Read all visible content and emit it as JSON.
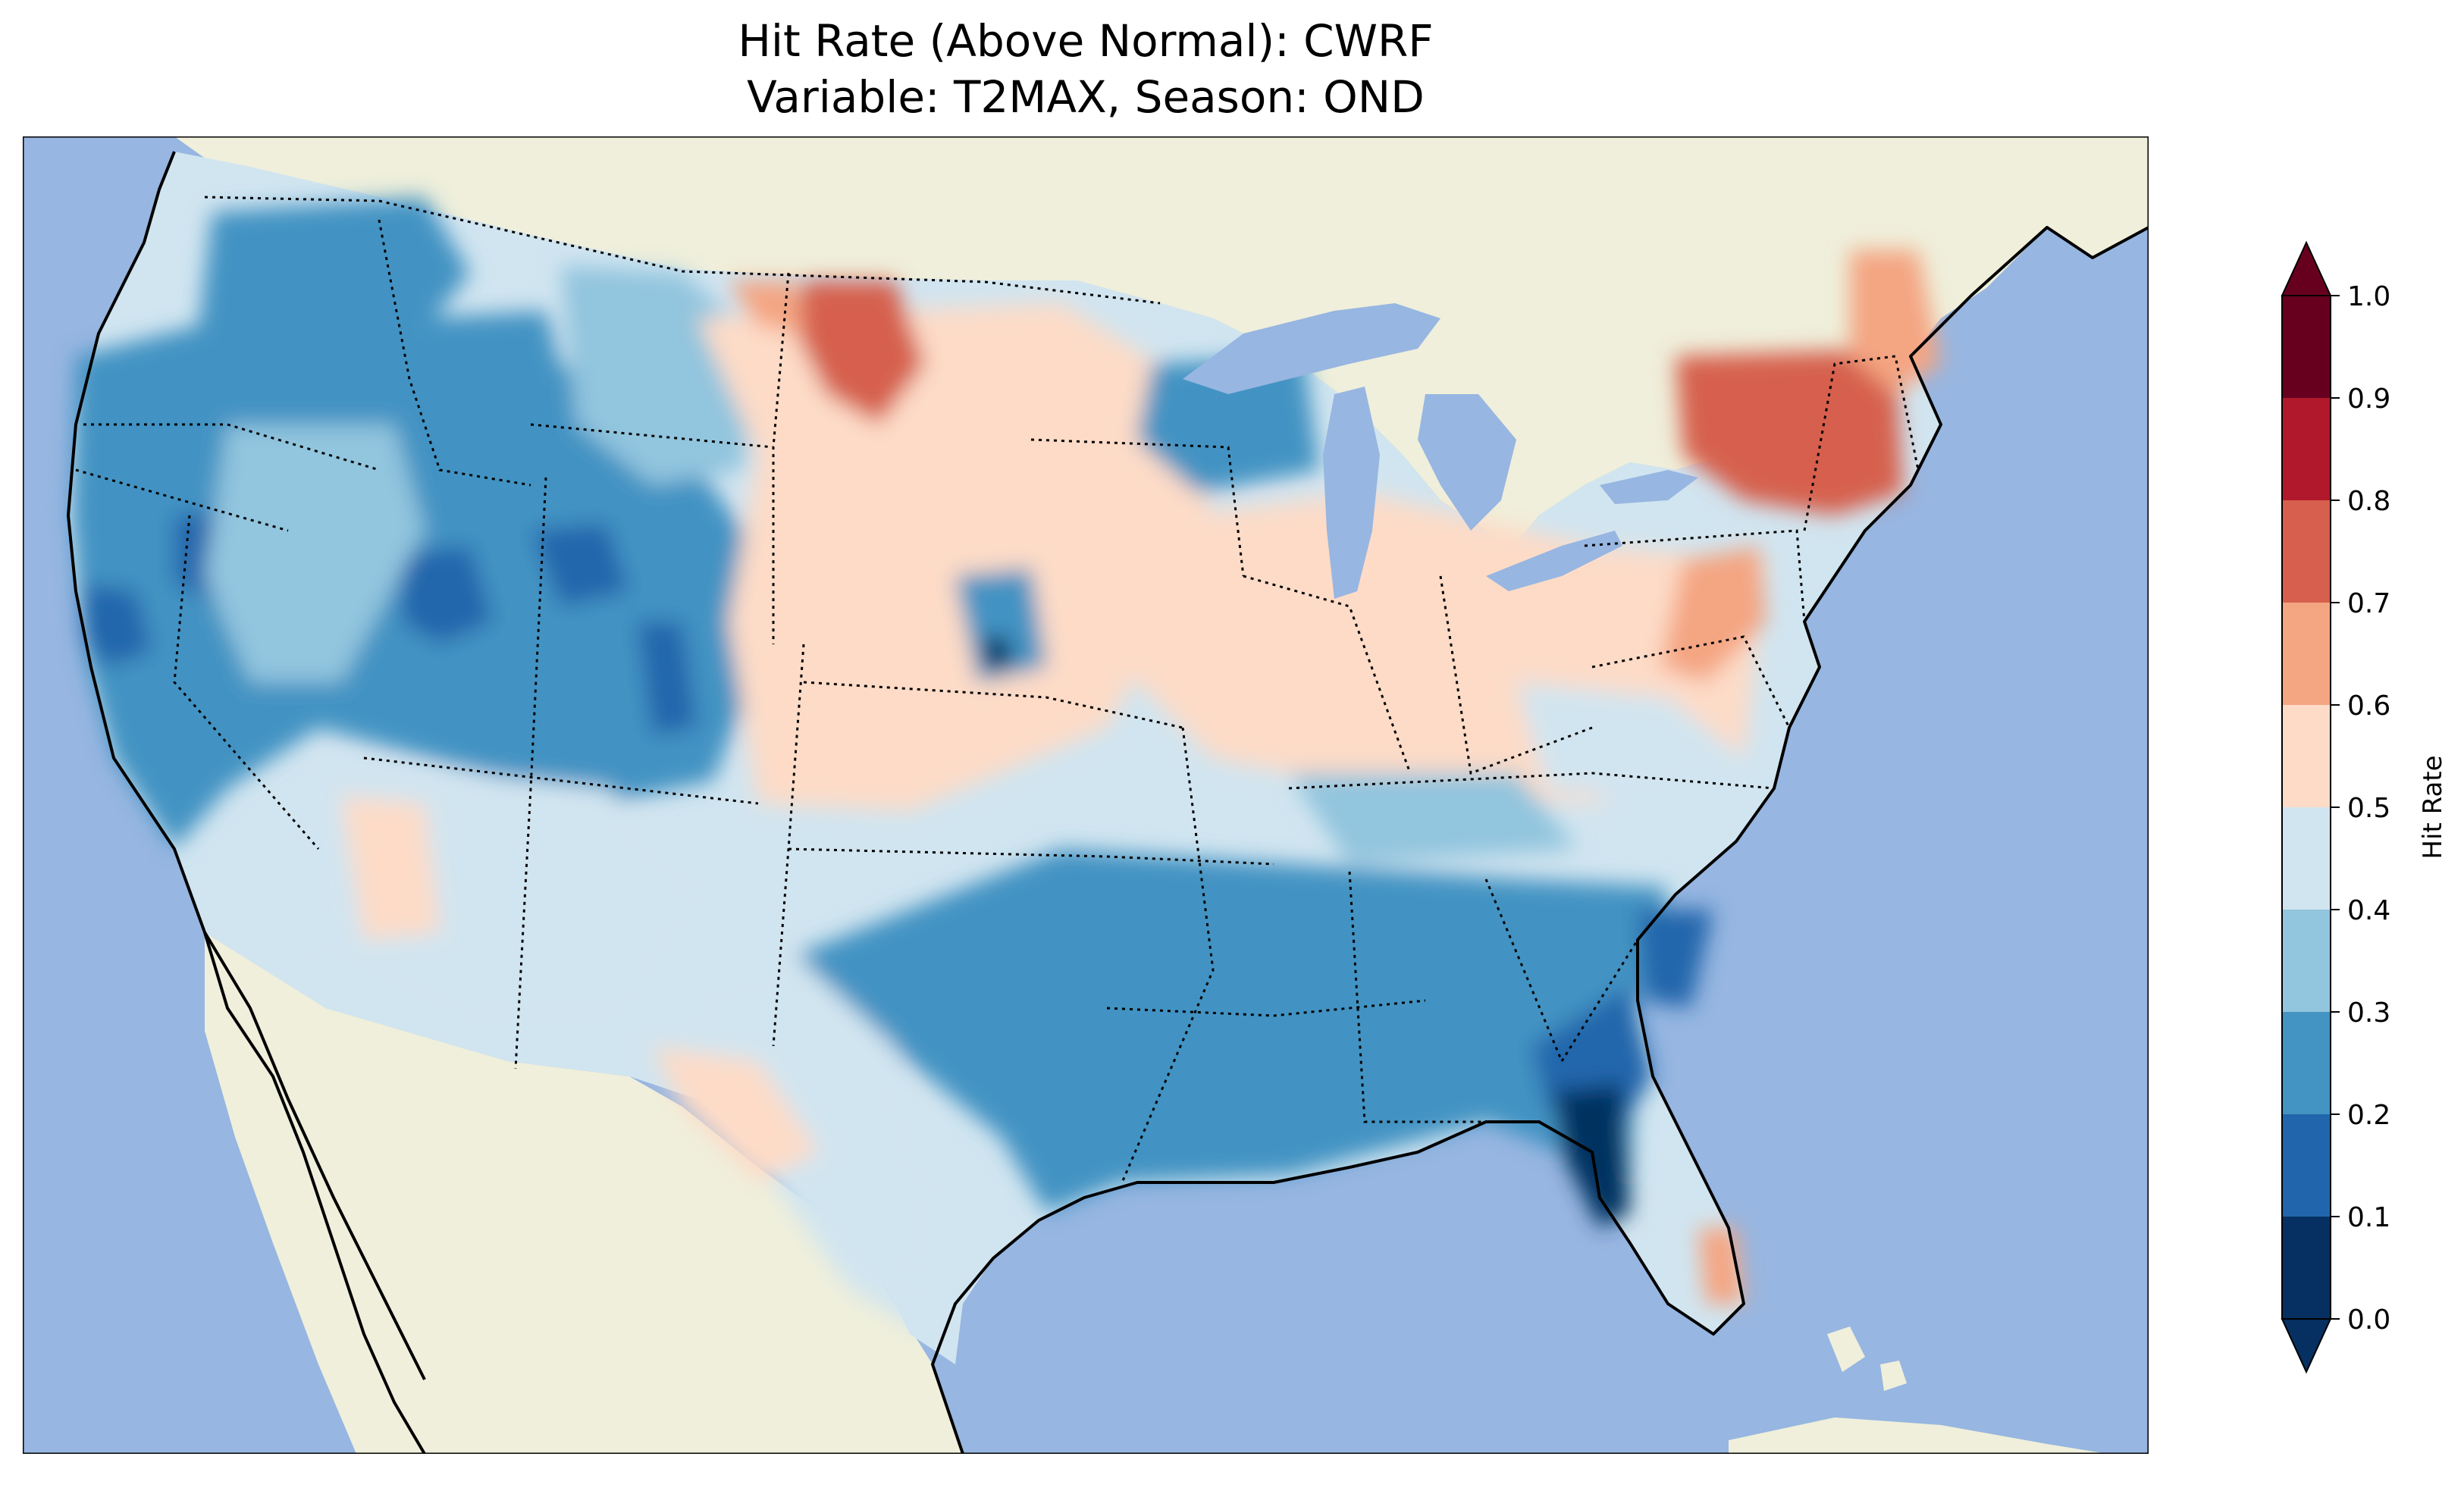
{
  "title": {
    "line1": "Hit Rate (Above Normal): CWRF",
    "line2": "Variable: T2MAX, Season: OND"
  },
  "map": {
    "ocean_color": "#97b6e1",
    "land_color": "#efefdb",
    "coastline_color": "#000000",
    "border_style": "dotted"
  },
  "colorbar": {
    "label": "Hit Rate",
    "ticks": [
      "0.0",
      "0.1",
      "0.2",
      "0.3",
      "0.4",
      "0.5",
      "0.6",
      "0.7",
      "0.8",
      "0.9",
      "1.0"
    ],
    "colors": [
      "#053061",
      "#2166ac",
      "#4393c3",
      "#92c5de",
      "#d1e5f0",
      "#fddbc7",
      "#f4a582",
      "#d6604d",
      "#b2182b",
      "#67001f"
    ],
    "extend": "both"
  }
}
